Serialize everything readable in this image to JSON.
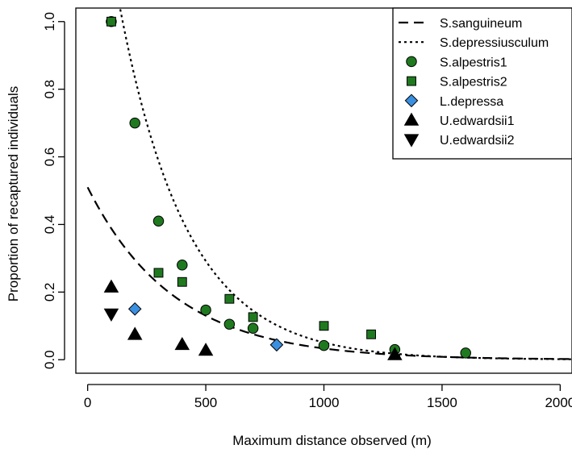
{
  "chart_data": {
    "type": "scatter",
    "xlabel": "Maximum distance observed (m)",
    "ylabel": "Proportion of recaptured individuals",
    "xlim": [
      -50,
      2050
    ],
    "ylim": [
      -0.04,
      1.04
    ],
    "xticks": [
      0,
      500,
      1000,
      1500,
      2000
    ],
    "xtick_labels": [
      "0",
      "500",
      "1000",
      "1500",
      "2000"
    ],
    "yticks": [
      0.0,
      0.2,
      0.4,
      0.6,
      0.8,
      1.0
    ],
    "ytick_labels": [
      "0.0",
      "0.2",
      "0.4",
      "0.6",
      "0.8",
      "1.0"
    ],
    "grid": false,
    "legend_position": "top-right",
    "curves": [
      {
        "name": "S.sanguineum",
        "style": "dashed",
        "a": 0.51,
        "k": 0.00273,
        "x_start": 0,
        "x_end": 2050,
        "color": "#000000"
      },
      {
        "name": "S.depressiusculum",
        "style": "dotted",
        "a": 1.68,
        "k": 0.0035,
        "x_start": 0,
        "x_end": 2050,
        "color": "#000000"
      }
    ],
    "series": [
      {
        "name": "S.alpestris1",
        "marker": "circle",
        "color": "#1f7a1f",
        "points": [
          [
            100,
            1.0
          ],
          [
            200,
            0.7
          ],
          [
            300,
            0.41
          ],
          [
            400,
            0.28
          ],
          [
            500,
            0.147
          ],
          [
            600,
            0.105
          ],
          [
            700,
            0.093
          ],
          [
            1000,
            0.042
          ],
          [
            1300,
            0.03
          ],
          [
            1600,
            0.02
          ]
        ]
      },
      {
        "name": "S.alpestris2",
        "marker": "square",
        "color": "#1f7a1f",
        "points": [
          [
            100,
            1.0
          ],
          [
            300,
            0.257
          ],
          [
            400,
            0.23
          ],
          [
            600,
            0.18
          ],
          [
            700,
            0.126
          ],
          [
            1000,
            0.1
          ],
          [
            1200,
            0.075
          ]
        ]
      },
      {
        "name": "L.depressa",
        "marker": "diamond",
        "color": "#3a8fe0",
        "points": [
          [
            200,
            0.15
          ],
          [
            800,
            0.044
          ]
        ]
      },
      {
        "name": "U.edwardsii1",
        "marker": "triangle-up",
        "color": "#000000",
        "points": [
          [
            100,
            0.215
          ],
          [
            200,
            0.075
          ],
          [
            400,
            0.045
          ],
          [
            500,
            0.028
          ],
          [
            1300,
            0.015
          ]
        ]
      },
      {
        "name": "U.edwardsii2",
        "marker": "triangle-down",
        "color": "#000000",
        "points": [
          [
            100,
            0.135
          ]
        ]
      }
    ]
  }
}
